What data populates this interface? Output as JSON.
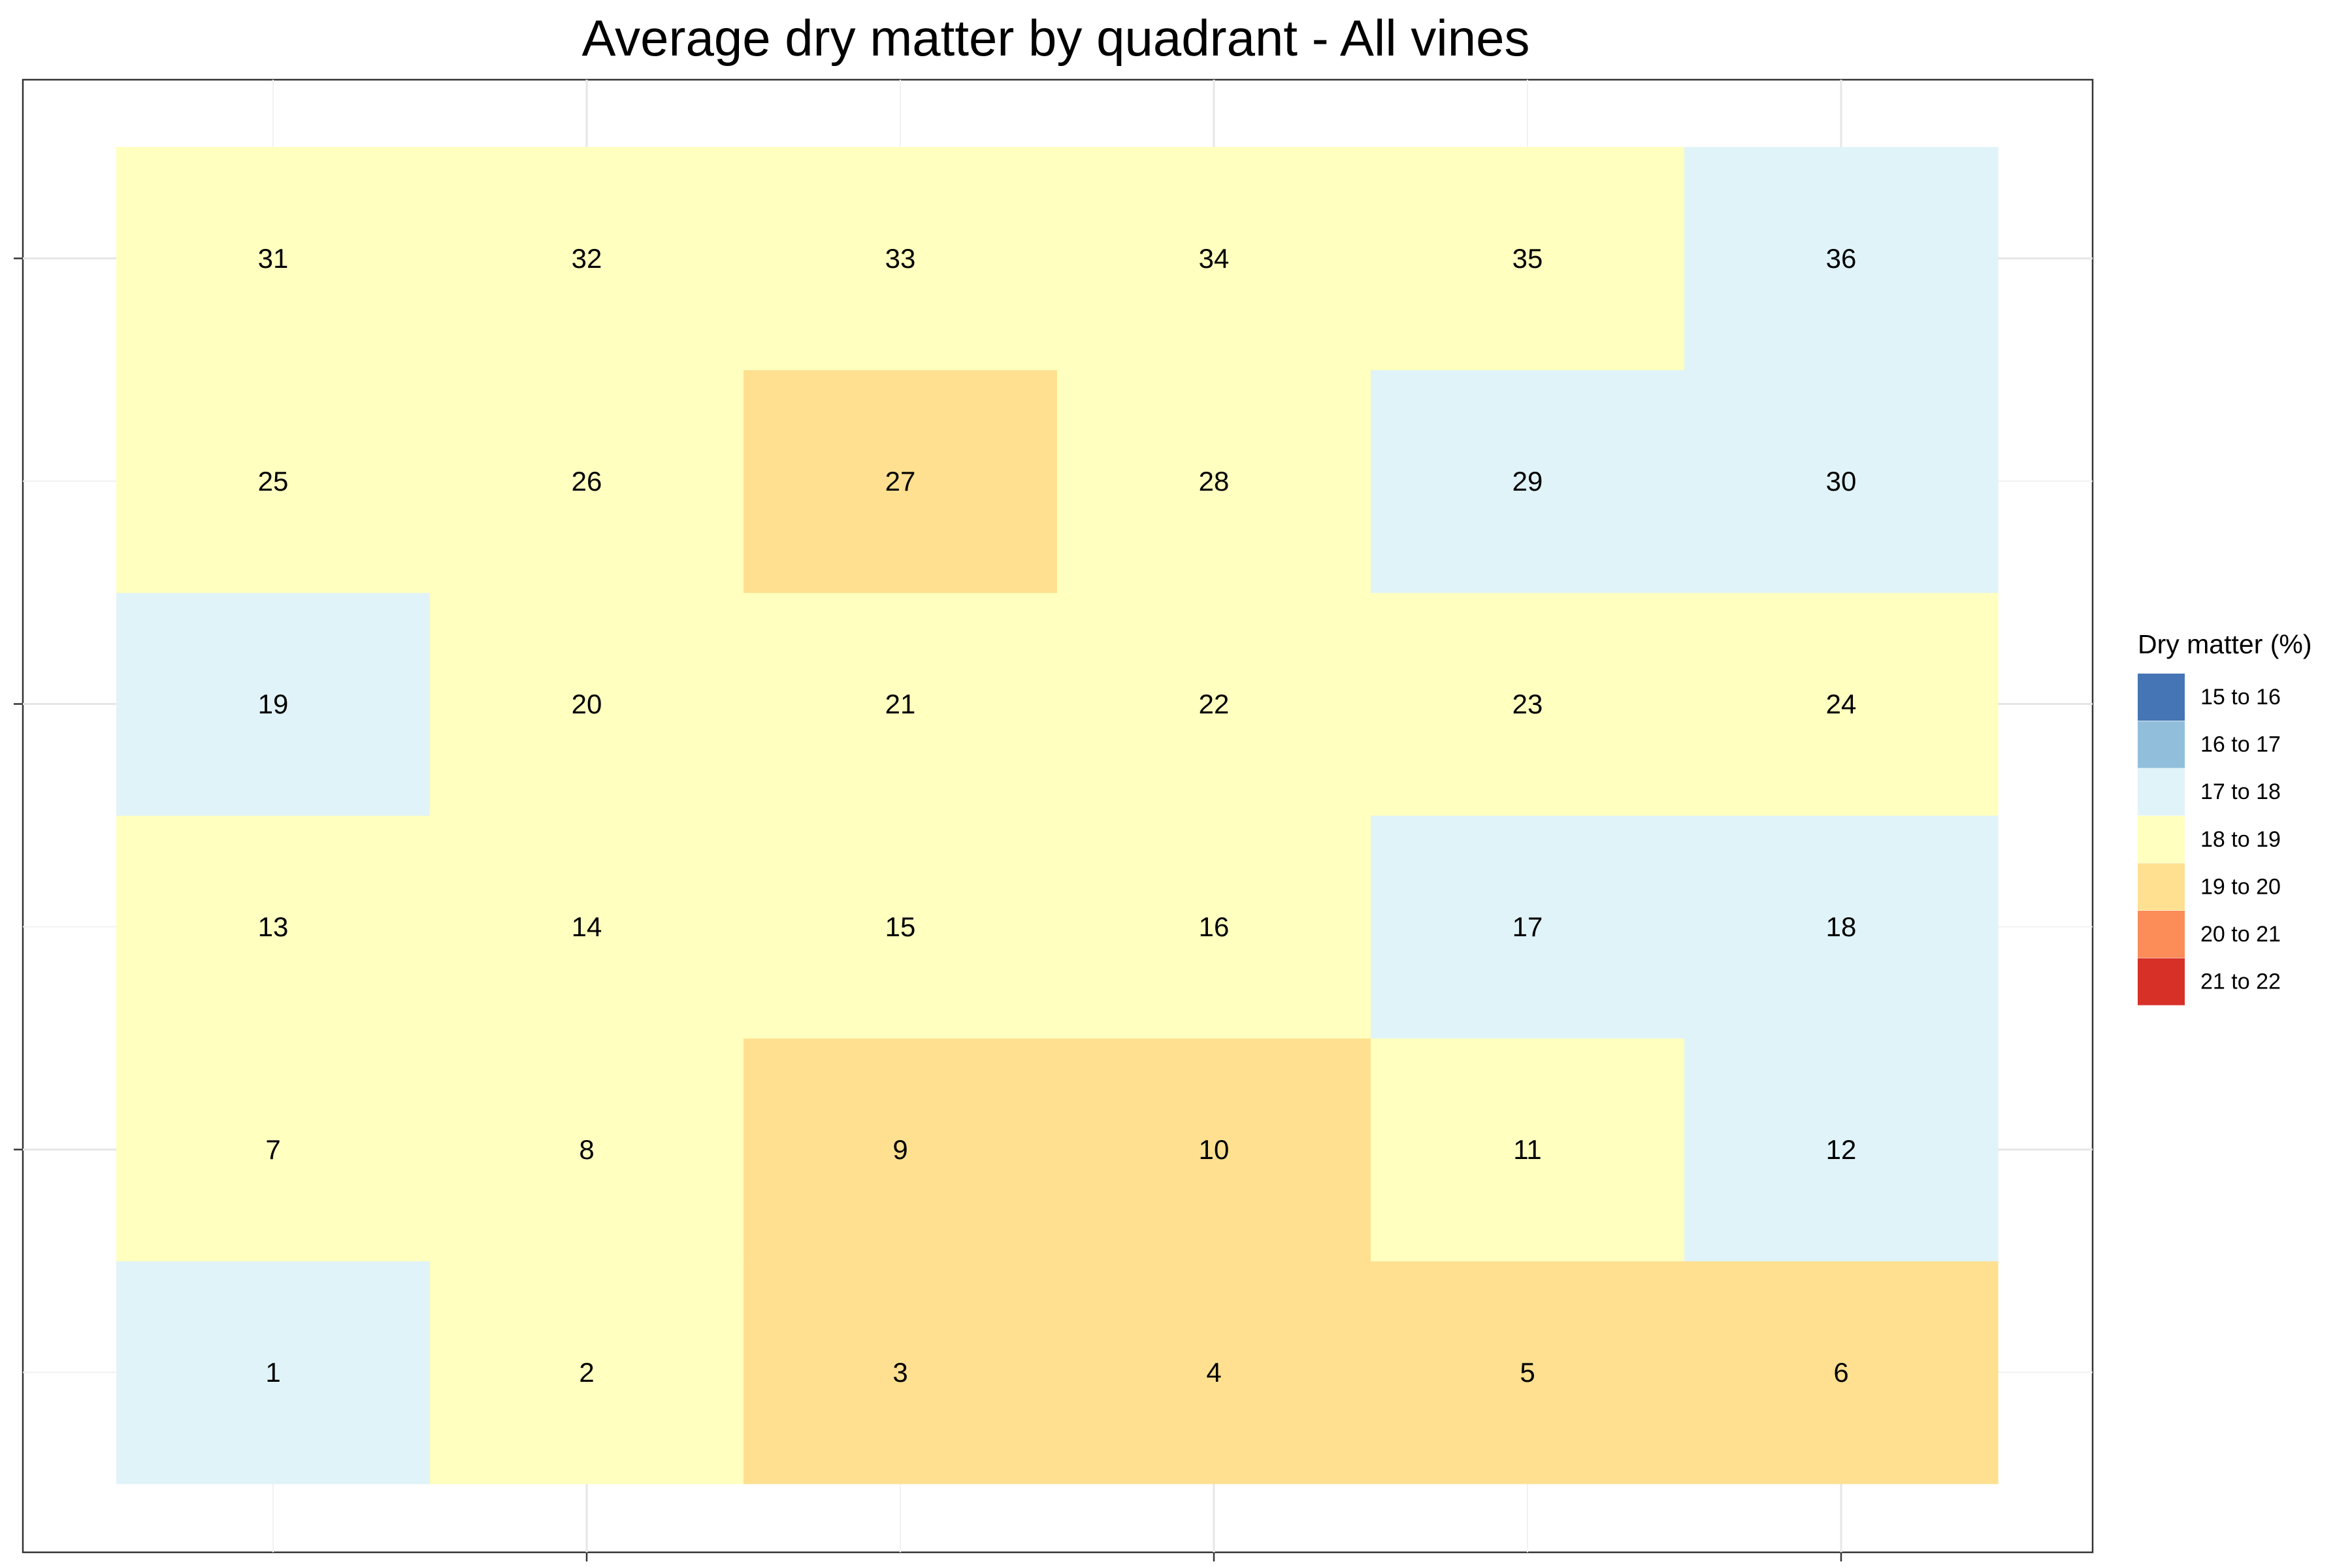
{
  "chart_data": {
    "type": "heatmap",
    "title": "Average dry matter by quadrant - All vines",
    "xlabel": "",
    "ylabel": "",
    "grid": true,
    "legend_position": "right",
    "legend": {
      "title": "Dry matter (%)",
      "entries": [
        {
          "label": "15 to 16",
          "color": "#4575b4"
        },
        {
          "label": "16 to 17",
          "color": "#91bfdb"
        },
        {
          "label": "17 to 18",
          "color": "#e0f3f8"
        },
        {
          "label": "18 to 19",
          "color": "#ffffbf"
        },
        {
          "label": "19 to 20",
          "color": "#fee090"
        },
        {
          "label": "20 to 21",
          "color": "#fc8d59"
        },
        {
          "label": "21 to 22",
          "color": "#d73027"
        }
      ]
    },
    "columns": 6,
    "rows": 6,
    "cells": [
      {
        "label": "1",
        "col": 1,
        "row": 1,
        "bin": "17 to 18"
      },
      {
        "label": "2",
        "col": 2,
        "row": 1,
        "bin": "18 to 19"
      },
      {
        "label": "3",
        "col": 3,
        "row": 1,
        "bin": "19 to 20"
      },
      {
        "label": "4",
        "col": 4,
        "row": 1,
        "bin": "19 to 20"
      },
      {
        "label": "5",
        "col": 5,
        "row": 1,
        "bin": "19 to 20"
      },
      {
        "label": "6",
        "col": 6,
        "row": 1,
        "bin": "19 to 20"
      },
      {
        "label": "7",
        "col": 1,
        "row": 2,
        "bin": "18 to 19"
      },
      {
        "label": "8",
        "col": 2,
        "row": 2,
        "bin": "18 to 19"
      },
      {
        "label": "9",
        "col": 3,
        "row": 2,
        "bin": "19 to 20"
      },
      {
        "label": "10",
        "col": 4,
        "row": 2,
        "bin": "19 to 20"
      },
      {
        "label": "11",
        "col": 5,
        "row": 2,
        "bin": "18 to 19"
      },
      {
        "label": "12",
        "col": 6,
        "row": 2,
        "bin": "17 to 18"
      },
      {
        "label": "13",
        "col": 1,
        "row": 3,
        "bin": "18 to 19"
      },
      {
        "label": "14",
        "col": 2,
        "row": 3,
        "bin": "18 to 19"
      },
      {
        "label": "15",
        "col": 3,
        "row": 3,
        "bin": "18 to 19"
      },
      {
        "label": "16",
        "col": 4,
        "row": 3,
        "bin": "18 to 19"
      },
      {
        "label": "17",
        "col": 5,
        "row": 3,
        "bin": "17 to 18"
      },
      {
        "label": "18",
        "col": 6,
        "row": 3,
        "bin": "17 to 18"
      },
      {
        "label": "19",
        "col": 1,
        "row": 4,
        "bin": "17 to 18"
      },
      {
        "label": "20",
        "col": 2,
        "row": 4,
        "bin": "18 to 19"
      },
      {
        "label": "21",
        "col": 3,
        "row": 4,
        "bin": "18 to 19"
      },
      {
        "label": "22",
        "col": 4,
        "row": 4,
        "bin": "18 to 19"
      },
      {
        "label": "23",
        "col": 5,
        "row": 4,
        "bin": "18 to 19"
      },
      {
        "label": "24",
        "col": 6,
        "row": 4,
        "bin": "18 to 19"
      },
      {
        "label": "25",
        "col": 1,
        "row": 5,
        "bin": "18 to 19"
      },
      {
        "label": "26",
        "col": 2,
        "row": 5,
        "bin": "18 to 19"
      },
      {
        "label": "27",
        "col": 3,
        "row": 5,
        "bin": "19 to 20"
      },
      {
        "label": "28",
        "col": 4,
        "row": 5,
        "bin": "18 to 19"
      },
      {
        "label": "29",
        "col": 5,
        "row": 5,
        "bin": "17 to 18"
      },
      {
        "label": "30",
        "col": 6,
        "row": 5,
        "bin": "17 to 18"
      },
      {
        "label": "31",
        "col": 1,
        "row": 6,
        "bin": "18 to 19"
      },
      {
        "label": "32",
        "col": 2,
        "row": 6,
        "bin": "18 to 19"
      },
      {
        "label": "33",
        "col": 3,
        "row": 6,
        "bin": "18 to 19"
      },
      {
        "label": "34",
        "col": 4,
        "row": 6,
        "bin": "18 to 19"
      },
      {
        "label": "35",
        "col": 5,
        "row": 6,
        "bin": "18 to 19"
      },
      {
        "label": "36",
        "col": 6,
        "row": 6,
        "bin": "17 to 18"
      }
    ]
  }
}
